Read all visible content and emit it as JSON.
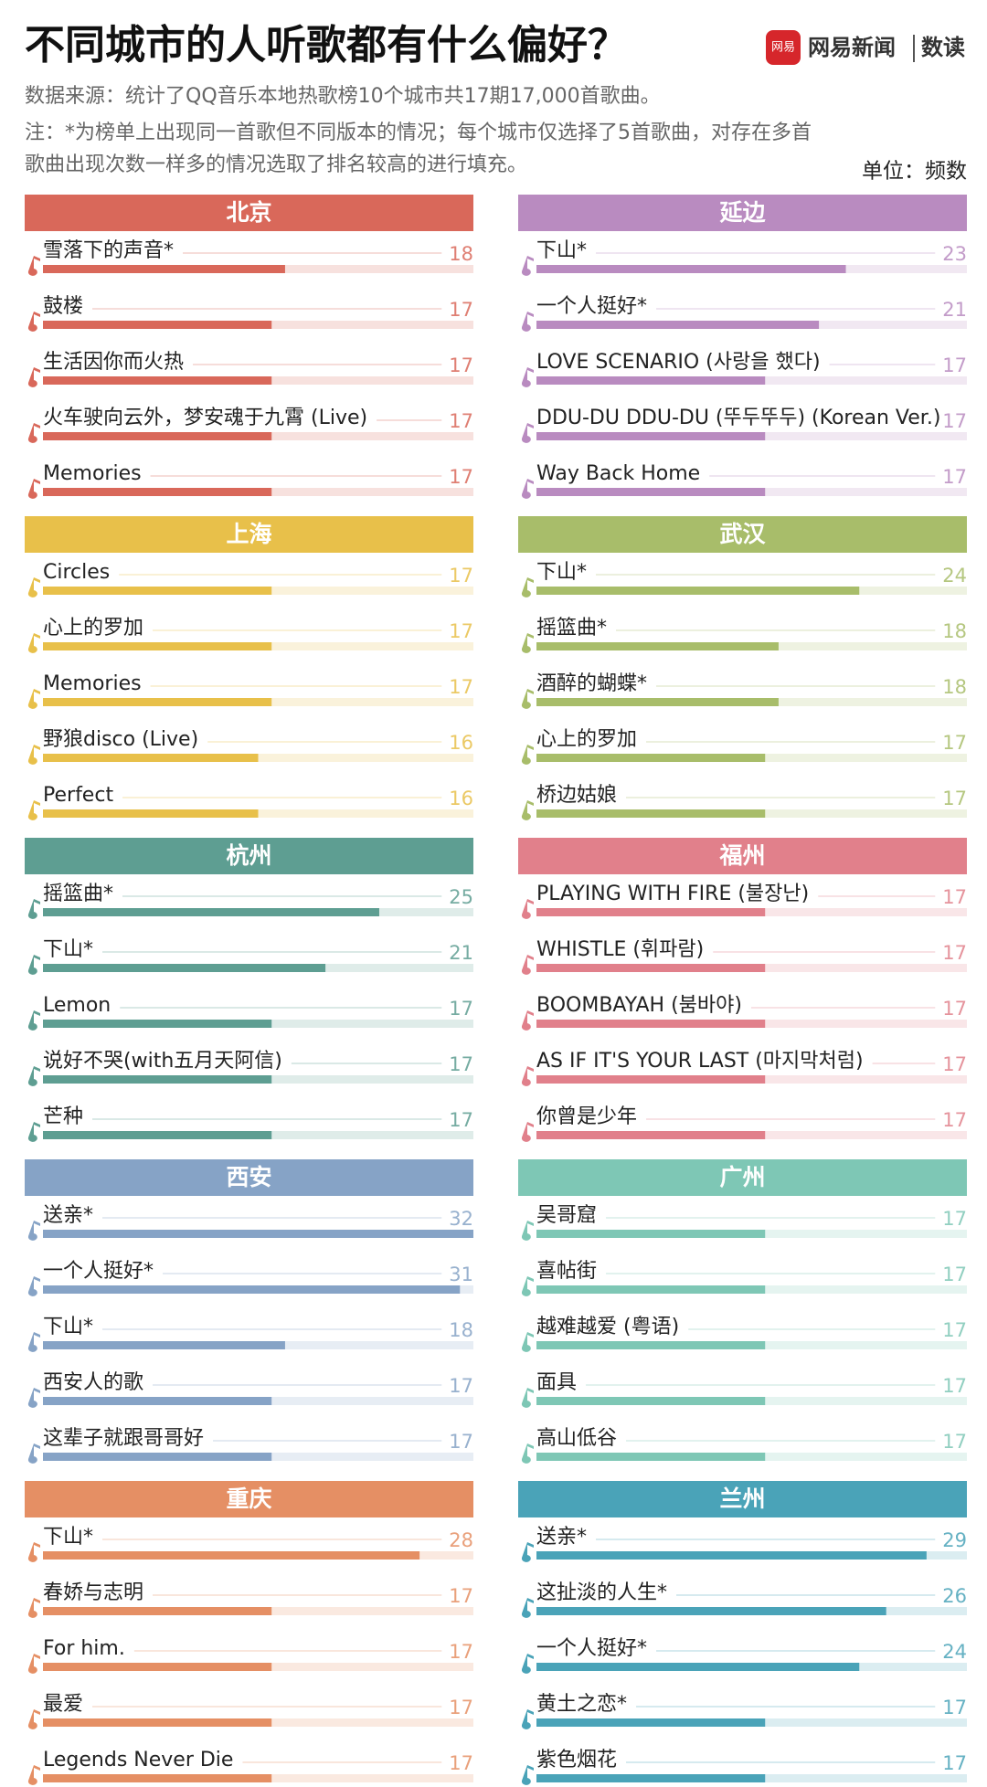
{
  "header": {
    "title": "不同城市的人听歌都有什么偏好？",
    "icon": "网易",
    "logo": "网易新闻",
    "logo2": "数读",
    "source": "数据来源：统计了QQ音乐本地热歌榜10个城市共17期17,000首歌曲。",
    "note": [
      "注：*为榜单上出现同一首歌但不同版本的情况；每个城市仅选择了5首歌曲，对存在多首",
      "歌曲出现次数一样多的情况选取了排名较高的进行填充。"
    ],
    "unit": "单位：频数"
  },
  "chart_data": [
    {
      "type": "bar",
      "title": "北京",
      "color": "#d9685a",
      "xlim": [
        0,
        32
      ],
      "categories": [
        "雪落下的声音*",
        "鼓楼",
        "生活因你而火热",
        "火车驶向云外，梦安魂于九霄 (Live)",
        "Memories"
      ],
      "values": [
        18,
        17,
        17,
        17,
        17
      ]
    },
    {
      "type": "bar",
      "title": "延边",
      "color": "#b98bc0",
      "xlim": [
        0,
        32
      ],
      "categories": [
        "下山*",
        "一个人挺好*",
        "LOVE SCENARIO (사랑을 했다)",
        "DDU-DU DDU-DU (뚜두뚜두) (Korean Ver.)",
        "Way Back Home"
      ],
      "values": [
        23,
        21,
        17,
        17,
        17
      ]
    },
    {
      "type": "bar",
      "title": "上海",
      "color": "#e8c04a",
      "xlim": [
        0,
        32
      ],
      "categories": [
        "Circles",
        "心上的罗加",
        "Memories",
        "野狼disco (Live)",
        "Perfect"
      ],
      "values": [
        17,
        17,
        17,
        16,
        16
      ]
    },
    {
      "type": "bar",
      "title": "武汉",
      "color": "#a8bd6a",
      "xlim": [
        0,
        32
      ],
      "categories": [
        "下山*",
        "摇篮曲*",
        "酒醉的蝴蝶*",
        "心上的罗加",
        "桥边姑娘"
      ],
      "values": [
        24,
        18,
        18,
        17,
        17
      ]
    },
    {
      "type": "bar",
      "title": "杭州",
      "color": "#5e9e92",
      "xlim": [
        0,
        32
      ],
      "categories": [
        "摇篮曲*",
        "下山*",
        "Lemon",
        "说好不哭(with五月天阿信)",
        "芒种"
      ],
      "values": [
        25,
        21,
        17,
        17,
        17
      ]
    },
    {
      "type": "bar",
      "title": "福州",
      "color": "#e1808b",
      "xlim": [
        0,
        32
      ],
      "categories": [
        "PLAYING WITH FIRE (불장난)",
        "WHISTLE (휘파람)",
        "BOOMBAYAH (붐바야)",
        "AS IF IT'S YOUR LAST (마지막처럼)",
        "你曾是少年"
      ],
      "values": [
        17,
        17,
        17,
        17,
        17
      ]
    },
    {
      "type": "bar",
      "title": "西安",
      "color": "#86a3c6",
      "xlim": [
        0,
        32
      ],
      "categories": [
        "送亲*",
        "一个人挺好*",
        "下山*",
        "西安人的歌",
        "这辈子就跟哥哥好"
      ],
      "values": [
        32,
        31,
        18,
        17,
        17
      ]
    },
    {
      "type": "bar",
      "title": "广州",
      "color": "#7ec7b5",
      "xlim": [
        0,
        32
      ],
      "categories": [
        "吴哥窟",
        "喜帖街",
        "越难越爱 (粤语)",
        "面具",
        "高山低谷"
      ],
      "values": [
        17,
        17,
        17,
        17,
        17
      ]
    },
    {
      "type": "bar",
      "title": "重庆",
      "color": "#e58f64",
      "xlim": [
        0,
        32
      ],
      "categories": [
        "下山*",
        "春娇与志明",
        "For him.",
        "最爱",
        "Legends Never Die"
      ],
      "values": [
        28,
        17,
        17,
        17,
        17
      ]
    },
    {
      "type": "bar",
      "title": "兰州",
      "color": "#4aa3b8",
      "xlim": [
        0,
        32
      ],
      "categories": [
        "送亲*",
        "这扯淡的人生*",
        "一个人挺好*",
        "黄土之恋*",
        "紫色烟花"
      ],
      "values": [
        29,
        26,
        24,
        17,
        17
      ]
    }
  ]
}
